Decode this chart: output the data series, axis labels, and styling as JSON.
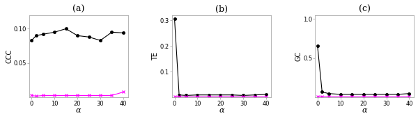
{
  "alpha": [
    0,
    2,
    5,
    10,
    15,
    20,
    25,
    30,
    35,
    40
  ],
  "ccc_yx": [
    0.083,
    0.09,
    0.092,
    0.095,
    0.1,
    0.09,
    0.088,
    0.083,
    0.095,
    0.094
  ],
  "ccc_xy": [
    0.003,
    0.002,
    0.003,
    0.003,
    0.003,
    0.003,
    0.003,
    0.003,
    0.003,
    0.008
  ],
  "te_yx": [
    0.305,
    0.01,
    0.008,
    0.01,
    0.01,
    0.01,
    0.01,
    0.008,
    0.01,
    0.012
  ],
  "te_xy": [
    0.005,
    0.005,
    0.005,
    0.005,
    0.005,
    0.005,
    0.005,
    0.005,
    0.005,
    0.005
  ],
  "gc_yx": [
    0.655,
    0.07,
    0.05,
    0.04,
    0.04,
    0.04,
    0.04,
    0.04,
    0.04,
    0.05
  ],
  "gc_xy": [
    0.01,
    0.01,
    0.01,
    0.01,
    0.01,
    0.01,
    0.01,
    0.01,
    0.01,
    0.01
  ],
  "titles": [
    "(a)",
    "(b)",
    "(c)"
  ],
  "ylabels": [
    "CCC",
    "TE",
    "GC"
  ],
  "xlabel": "α",
  "black_color": "#000000",
  "magenta_color": "#ff00ff",
  "spine_color": "#aaaaaa",
  "ccc_ylim": [
    0,
    0.12
  ],
  "ccc_yticks": [
    0.05,
    0.1
  ],
  "te_ylim": [
    0,
    0.32
  ],
  "te_yticks": [
    0.1,
    0.2,
    0.3
  ],
  "gc_ylim": [
    0,
    1.05
  ],
  "gc_yticks": [
    0.5,
    1.0
  ],
  "xlim": [
    -1,
    42
  ],
  "xticks": [
    0,
    10,
    20,
    30,
    40
  ],
  "title_fontsize": 9,
  "ylabel_fontsize": 7,
  "xlabel_fontsize": 8,
  "tick_fontsize": 6,
  "marker_size": 3,
  "line_width": 0.8
}
